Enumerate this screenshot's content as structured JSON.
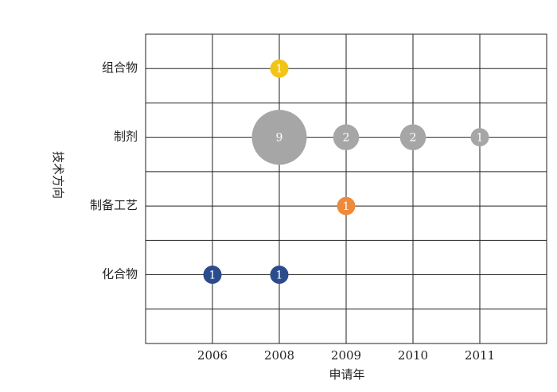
{
  "chart_data": {
    "type": "bubble",
    "x_label": "申请年",
    "y_label": "技术方向",
    "x_categories": [
      "2006",
      "2008",
      "2009",
      "2010",
      "2011"
    ],
    "y_categories": [
      "化合物",
      "制备工艺",
      "制剂",
      "组合物"
    ],
    "points": [
      {
        "x": "2008",
        "y": "组合物",
        "value": 1,
        "color": "#f2c418"
      },
      {
        "x": "2008",
        "y": "制剂",
        "value": 9,
        "color": "#a6a6a6"
      },
      {
        "x": "2009",
        "y": "制剂",
        "value": 2,
        "color": "#a6a6a6"
      },
      {
        "x": "2010",
        "y": "制剂",
        "value": 2,
        "color": "#a6a6a6"
      },
      {
        "x": "2011",
        "y": "制剂",
        "value": 1,
        "color": "#a6a6a6"
      },
      {
        "x": "2009",
        "y": "制备工艺",
        "value": 1,
        "color": "#ee8a3c"
      },
      {
        "x": "2006",
        "y": "化合物",
        "value": 1,
        "color": "#2b4c8c"
      },
      {
        "x": "2008",
        "y": "化合物",
        "value": 1,
        "color": "#2b4c8c"
      }
    ],
    "grid": true
  }
}
